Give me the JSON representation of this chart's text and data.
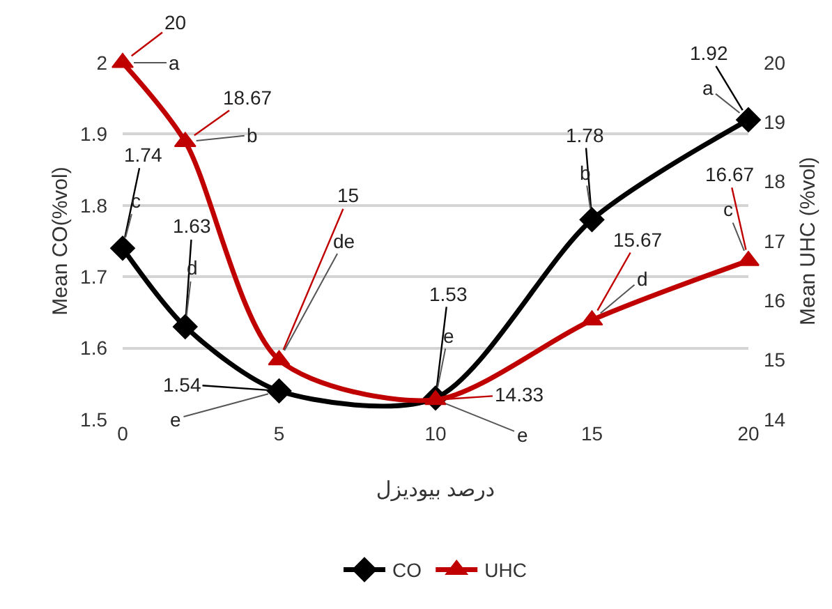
{
  "chart_data": {
    "type": "line",
    "xlabel": "درصد بیودیزل",
    "ylabel": "Mean CO(%vol)",
    "y2label": "Mean UHC (%vol)",
    "x": [
      0,
      2,
      5,
      10,
      15,
      20
    ],
    "series": [
      {
        "name": "CO",
        "color": "#000000",
        "marker": "diamond",
        "values": [
          1.74,
          1.63,
          1.54,
          1.53,
          1.78,
          1.92
        ],
        "value_labels": [
          "1.74",
          "1.63",
          "1.54",
          "1.53",
          "1.78",
          "1.92"
        ]
      },
      {
        "name": "UHC",
        "color": "#c00000",
        "marker": "triangle",
        "axis": "y2",
        "values": [
          20,
          18.67,
          15,
          14.33,
          15.67,
          16.67
        ],
        "value_labels": [
          "20",
          "18.67",
          "15",
          "14.33",
          "15.67",
          "16.67"
        ]
      }
    ],
    "annotations": [
      {
        "text": "c",
        "x": 0,
        "y": 1.74
      },
      {
        "text": "d",
        "x": 2,
        "y": 1.63
      },
      {
        "text": "e",
        "x": 5,
        "y": 1.54
      },
      {
        "text": "e",
        "x": 10,
        "y": 1.53
      },
      {
        "text": "b",
        "x": 15,
        "y": 1.78
      },
      {
        "text": "a",
        "x": 20,
        "y": 1.92
      },
      {
        "text": "a",
        "x": 0,
        "y": 2.0
      },
      {
        "text": "b",
        "x": 2,
        "y": 1.889
      },
      {
        "text": "de",
        "x": 5,
        "y": 1.583
      },
      {
        "text": "e",
        "x": 10,
        "y": 1.528
      },
      {
        "text": "d",
        "x": 15,
        "y": 1.639
      },
      {
        "text": "c",
        "x": 20,
        "y": 1.722
      }
    ],
    "xlim": [
      0,
      20
    ],
    "xticks": [
      0,
      5,
      10,
      15,
      20
    ],
    "ylim": [
      1.5,
      2
    ],
    "yticks": [
      1.5,
      1.6,
      1.7,
      1.8,
      1.9,
      {
        "value": 2,
        "label": "2"
      }
    ],
    "y2lim": [
      14,
      20
    ],
    "y2ticks": [
      14,
      15,
      16,
      17,
      18,
      19,
      20
    ],
    "grid": "y",
    "legend": "bottom",
    "line_style": "solid"
  }
}
